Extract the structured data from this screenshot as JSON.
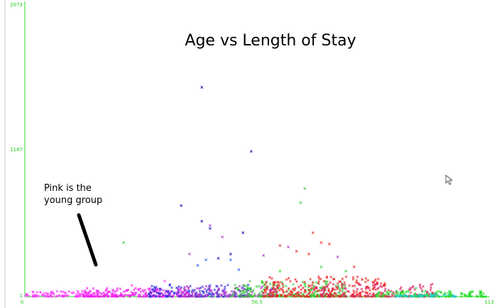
{
  "chart_data": {
    "type": "scatter",
    "title": "Age vs Length of Stay",
    "xlabel": "",
    "ylabel": "",
    "xlim": [
      0,
      113
    ],
    "ylim": [
      1,
      2073
    ],
    "x_ticks": [
      "0",
      "56.5",
      "113"
    ],
    "y_ticks": [
      "1",
      "1187",
      "2073"
    ],
    "grid": false,
    "marker": "x",
    "annotation": "Pink is the young group",
    "series": [
      {
        "color": "#ff33ff",
        "points": [
          [
            2,
            10
          ],
          [
            3,
            5
          ],
          [
            14,
            20
          ],
          [
            16,
            15
          ],
          [
            18,
            25
          ],
          [
            20,
            60
          ],
          [
            22,
            18
          ],
          [
            24,
            35
          ],
          [
            26,
            80
          ],
          [
            28,
            12
          ],
          [
            30,
            55
          ],
          [
            32,
            40
          ],
          [
            34,
            110
          ]
        ]
      },
      {
        "color": "#0000aa",
        "points": [
          [
            43,
            1470
          ],
          [
            55,
            1020
          ],
          [
            38,
            640
          ],
          [
            43,
            530
          ],
          [
            45,
            480
          ],
          [
            47,
            270
          ],
          [
            50,
            300
          ],
          [
            53,
            450
          ]
        ]
      },
      {
        "color": "#33cc33",
        "points": [
          [
            68,
            760
          ],
          [
            67,
            660
          ],
          [
            24,
            380
          ],
          [
            62,
            180
          ],
          [
            72,
            210
          ],
          [
            78,
            180
          ],
          [
            95,
            60
          ]
        ]
      },
      {
        "color": "#ee2222",
        "points": [
          [
            70,
            450
          ],
          [
            72,
            380
          ],
          [
            74,
            370
          ],
          [
            69,
            300
          ],
          [
            62,
            360
          ],
          [
            66,
            320
          ],
          [
            80,
            210
          ],
          [
            85,
            110
          ]
        ]
      },
      {
        "color": "#aa33cc",
        "points": [
          [
            40,
            300
          ],
          [
            45,
            500
          ],
          [
            48,
            420
          ],
          [
            58,
            290
          ],
          [
            64,
            350
          ],
          [
            76,
            280
          ]
        ]
      },
      {
        "color": "#2255ee",
        "points": [
          [
            42,
            220
          ],
          [
            44,
            260
          ],
          [
            50,
            260
          ],
          [
            52,
            190
          ]
        ]
      }
    ],
    "cursor_icon": "mouse-pointer-icon"
  }
}
